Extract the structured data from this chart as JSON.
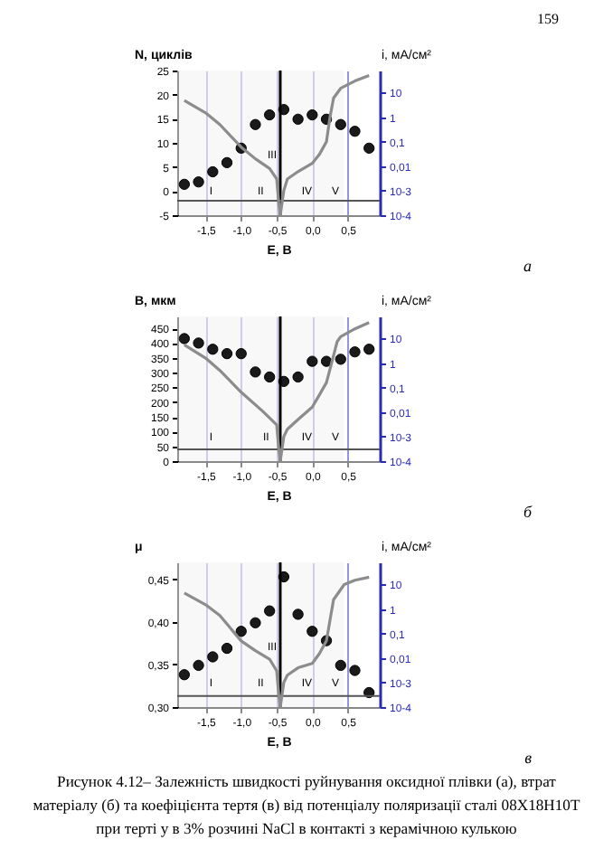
{
  "chart_data": [
    {
      "type": "scatter",
      "xlabel": "E, В",
      "ylabel": "N, циклів",
      "y2label": "i, мА/см²",
      "x": [
        -1.8,
        -1.6,
        -1.4,
        -1.2,
        -1.0,
        -0.8,
        -0.6,
        -0.4,
        -0.2,
        0.0,
        0.2,
        0.4,
        0.6,
        0.8
      ],
      "series": [
        {
          "color": "#1a1a1a",
          "marker": "circle",
          "values": [
            1.4,
            1.9,
            4.0,
            5.9,
            8.9,
            13.8,
            15.8,
            16.9,
            14.9,
            15.8,
            14.9,
            13.8,
            12.4,
            8.9
          ]
        },
        {
          "type": "line",
          "axis": "y2",
          "color": "#8c8c8c",
          "x": [
            -1.8,
            -1.5,
            -1.3,
            -1.0,
            -0.8,
            -0.6,
            -0.5,
            -0.47,
            -0.45,
            -0.4,
            -0.35,
            -0.2,
            0.0,
            0.1,
            0.2,
            0.25,
            0.3,
            0.4,
            0.6,
            0.8
          ],
          "values": [
            4.8,
            1.5,
            0.5,
            0.06,
            0.02,
            0.008,
            0.003,
            0.0003,
            0.0001,
            0.001,
            0.003,
            0.006,
            0.013,
            0.03,
            0.1,
            1,
            6,
            15,
            30,
            50
          ]
        }
      ],
      "xlim": [
        -1.9,
        0.95
      ],
      "xticks": [
        {
          "value": -1.5,
          "label": "-1,5"
        },
        {
          "value": -1.0,
          "label": "-1,0"
        },
        {
          "value": -0.5,
          "label": "-0,5"
        },
        {
          "value": 0.0,
          "label": "0,0"
        },
        {
          "value": 0.5,
          "label": "0,5"
        }
      ],
      "ylim": [
        -5,
        25
      ],
      "yticks": [
        -5,
        0,
        5,
        10,
        15,
        20,
        25
      ],
      "y2lim": [
        0.0001,
        80
      ],
      "y2ticks": [
        {
          "value": 0.0001,
          "label": "10-4"
        },
        {
          "value": 0.001,
          "label": "10-3"
        },
        {
          "value": 0.01,
          "label": "0,01"
        },
        {
          "value": 0.1,
          "label": "0,1"
        },
        {
          "value": 1,
          "label": "1"
        },
        {
          "value": 10,
          "label": "10"
        }
      ],
      "log": "y2",
      "grid": "x",
      "ref_lines": [
        {
          "axis": "x",
          "value": -0.45,
          "color": "#000000"
        },
        {
          "axis": "y",
          "value": -2,
          "color": "#555555"
        }
      ],
      "bands": [
        {
          "axis": "x",
          "from": -1.9,
          "to": -0.95,
          "label": "I",
          "color": "#f4f4f4"
        },
        {
          "axis": "x",
          "from": -0.95,
          "to": -0.5,
          "label": "II",
          "color": "#f4f4f4"
        },
        {
          "axis": "x",
          "from": -0.5,
          "to": -0.35,
          "label": "III",
          "color": "#f4f4f4"
        },
        {
          "axis": "x",
          "from": -0.35,
          "to": 0.2,
          "label": "IV",
          "color": "#f4f4f4"
        },
        {
          "axis": "x",
          "from": 0.2,
          "to": 0.45,
          "label": "V",
          "color": "#f4f4f4"
        }
      ],
      "annotations": [
        "159",
        "а"
      ]
    },
    {
      "type": "scatter",
      "xlabel": "E, В",
      "ylabel": "В, мкм",
      "y2label": "i, мА/см²",
      "x": [
        -1.8,
        -1.6,
        -1.4,
        -1.2,
        -1.0,
        -0.8,
        -0.6,
        -0.4,
        -0.2,
        0.0,
        0.2,
        0.4,
        0.6,
        0.8
      ],
      "series": [
        {
          "color": "#1a1a1a",
          "marker": "circle",
          "values": [
            415,
            400,
            379,
            364,
            364,
            302,
            285,
            270,
            285,
            338,
            338,
            345,
            370,
            379
          ]
        },
        {
          "type": "line",
          "axis": "y2",
          "color": "#8c8c8c",
          "x": [
            -1.8,
            -1.5,
            -1.3,
            -1.0,
            -0.7,
            -0.5,
            -0.47,
            -0.45,
            -0.4,
            -0.35,
            -0.2,
            0.0,
            0.1,
            0.2,
            0.3,
            0.35,
            0.4,
            0.6,
            0.8
          ],
          "values": [
            5.6,
            1.6,
            0.5,
            0.065,
            0.011,
            0.003,
            0.0003,
            0.0001,
            0.001,
            0.002,
            0.005,
            0.016,
            0.05,
            0.16,
            2,
            7.4,
            12,
            25,
            45
          ]
        }
      ],
      "xlim": [
        -1.9,
        0.95
      ],
      "xticks": [
        {
          "value": -1.5,
          "label": "-1,5"
        },
        {
          "value": -1.0,
          "label": "-1,0"
        },
        {
          "value": -0.5,
          "label": "-0,5"
        },
        {
          "value": 0.0,
          "label": "0,0"
        },
        {
          "value": 0.5,
          "label": "0,5"
        }
      ],
      "ylim": [
        0,
        490
      ],
      "yticks": [
        0,
        50,
        100,
        150,
        200,
        250,
        300,
        350,
        400,
        450
      ],
      "y2lim": [
        0.0001,
        80
      ],
      "y2ticks": [
        {
          "value": 0.0001,
          "label": "10-4"
        },
        {
          "value": 0.001,
          "label": "10-3"
        },
        {
          "value": 0.01,
          "label": "0,01"
        },
        {
          "value": 0.1,
          "label": "0,1"
        },
        {
          "value": 1,
          "label": "1"
        },
        {
          "value": 10,
          "label": "10"
        }
      ],
      "log": "y2",
      "grid": "x",
      "ref_lines": [
        {
          "axis": "x",
          "value": -0.45,
          "color": "#000000"
        },
        {
          "axis": "y",
          "value": 40,
          "color": "#555555"
        }
      ],
      "bands": [
        {
          "axis": "x",
          "from": -1.9,
          "to": -0.95,
          "label": "I",
          "color": "#f4f4f4"
        },
        {
          "axis": "x",
          "from": -0.95,
          "to": -0.35,
          "label": "II",
          "color": "#f4f4f4"
        },
        {
          "axis": "x",
          "from": -0.35,
          "to": 0.2,
          "label": "IV",
          "color": "#f4f4f4"
        },
        {
          "axis": "x",
          "from": 0.2,
          "to": 0.45,
          "label": "V",
          "color": "#f4f4f4"
        }
      ],
      "annotations": [
        "б"
      ]
    },
    {
      "type": "scatter",
      "xlabel": "E, В",
      "ylabel": "μ",
      "y2label": "i, мА/см²",
      "x": [
        -1.8,
        -1.6,
        -1.4,
        -1.2,
        -1.0,
        -0.8,
        -0.6,
        -0.4,
        -0.2,
        0.0,
        0.2,
        0.4,
        0.6,
        0.8
      ],
      "series": [
        {
          "color": "#1a1a1a",
          "marker": "circle",
          "values": [
            0.338,
            0.349,
            0.359,
            0.369,
            0.389,
            0.399,
            0.413,
            0.453,
            0.409,
            0.389,
            0.378,
            0.349,
            0.343,
            0.317
          ]
        },
        {
          "type": "line",
          "axis": "y2",
          "color": "#8c8c8c",
          "x": [
            -1.8,
            -1.5,
            -1.3,
            -1.0,
            -0.8,
            -0.6,
            -0.5,
            -0.47,
            -0.45,
            -0.4,
            -0.35,
            -0.2,
            0.0,
            0.1,
            0.2,
            0.3,
            0.45,
            0.6,
            0.8
          ],
          "values": [
            4.5,
            1.5,
            0.54,
            0.05,
            0.02,
            0.009,
            0.003,
            0.0003,
            0.0001,
            0.001,
            0.002,
            0.004,
            0.006,
            0.015,
            0.05,
            2.4,
            10,
            15,
            20
          ]
        }
      ],
      "xlim": [
        -1.9,
        0.95
      ],
      "xticks": [
        {
          "value": -1.5,
          "label": "-1,5"
        },
        {
          "value": -1.0,
          "label": "-1,0"
        },
        {
          "value": -0.5,
          "label": "-0,5"
        },
        {
          "value": 0.0,
          "label": "0,0"
        },
        {
          "value": 0.5,
          "label": "0,5"
        }
      ],
      "ylim": [
        0.3,
        0.47
      ],
      "yticks": [
        {
          "value": 0.3,
          "label": "0,30"
        },
        {
          "value": 0.35,
          "label": "0,35"
        },
        {
          "value": 0.4,
          "label": "0,40"
        },
        {
          "value": 0.45,
          "label": "0,45"
        }
      ],
      "y2lim": [
        0.0001,
        80
      ],
      "y2ticks": [
        {
          "value": 0.0001,
          "label": "10-4"
        },
        {
          "value": 0.001,
          "label": "10-3"
        },
        {
          "value": 0.01,
          "label": "0,01"
        },
        {
          "value": 0.1,
          "label": "0,1"
        },
        {
          "value": 1,
          "label": "1"
        },
        {
          "value": 10,
          "label": "10"
        }
      ],
      "log": "y2",
      "grid": "x",
      "ref_lines": [
        {
          "axis": "x",
          "value": -0.45,
          "color": "#000000"
        },
        {
          "axis": "y",
          "value": 0.313,
          "color": "#555555"
        }
      ],
      "bands": [
        {
          "axis": "x",
          "from": -1.9,
          "to": -0.95,
          "label": "I",
          "color": "#f4f4f4"
        },
        {
          "axis": "x",
          "from": -0.95,
          "to": -0.5,
          "label": "II",
          "color": "#f4f4f4"
        },
        {
          "axis": "x",
          "from": -0.5,
          "to": -0.35,
          "label": "III",
          "color": "#f4f4f4"
        },
        {
          "axis": "x",
          "from": -0.35,
          "to": 0.2,
          "label": "IV",
          "color": "#f4f4f4"
        },
        {
          "axis": "x",
          "from": 0.2,
          "to": 0.45,
          "label": "V",
          "color": "#f4f4f4"
        }
      ],
      "annotations": [
        "в",
        "Рисунок 4.12– Залежність швидкості руйнування оксидної плівки (а), втрат матеріалу (б) та коефіцієнта тертя (в) від потенціалу поляризації сталі 08Х18Н10Т при терті у в 3% розчині NaCl в контакті з керамічною кулькою"
      ]
    }
  ]
}
